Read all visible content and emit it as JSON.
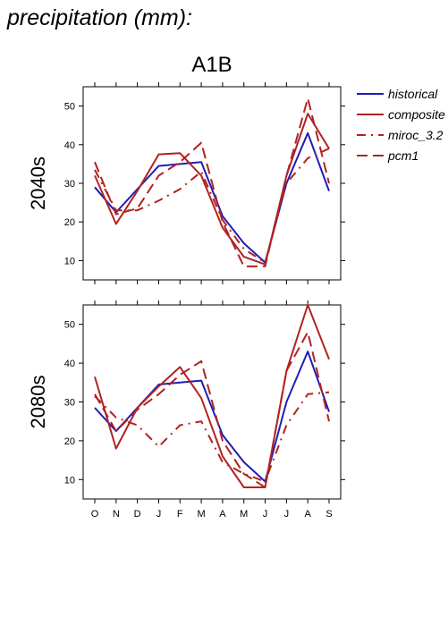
{
  "heading": "precipitation (mm):",
  "chart_data": {
    "type": "line",
    "title": "A1B",
    "categories": [
      "O",
      "N",
      "D",
      "J",
      "F",
      "M",
      "A",
      "M",
      "J",
      "J",
      "A",
      "S"
    ],
    "ylim": [
      5,
      55
    ],
    "yticks": [
      10,
      20,
      30,
      40,
      50
    ],
    "grid": false,
    "legend_position": "right",
    "legend": [
      {
        "name": "historical",
        "color": "#1f1fb4",
        "dash": "solid"
      },
      {
        "name": "composite",
        "color": "#b22222",
        "dash": "solid"
      },
      {
        "name": "miroc_3.2",
        "color": "#b22222",
        "dash": "dashdot"
      },
      {
        "name": "pcm1",
        "color": "#b22222",
        "dash": "longdash"
      }
    ],
    "panels": [
      {
        "label": "2040s",
        "series": [
          {
            "name": "historical",
            "values": [
              29,
              22.5,
              28.5,
              34.5,
              35,
              35.5,
              21.5,
              14.5,
              9.5,
              30,
              43,
              28
            ]
          },
          {
            "name": "composite",
            "values": [
              32,
              19.5,
              28,
              37.5,
              37.8,
              32,
              18.5,
              11,
              9,
              32,
              48,
              39
            ]
          },
          {
            "name": "miroc_3.2",
            "values": [
              33.5,
              23,
              23,
              25.5,
              28.5,
              33,
              20.5,
              13,
              9.5,
              30,
              36.5,
              39
            ]
          },
          {
            "name": "pcm1",
            "values": [
              35.5,
              22,
              23.5,
              32,
              35.5,
              40.5,
              20,
              8.5,
              8.5,
              32,
              52,
              30
            ]
          }
        ]
      },
      {
        "label": "2080s",
        "series": [
          {
            "name": "historical",
            "values": [
              28.5,
              22.5,
              28.5,
              34.5,
              35,
              35.5,
              21.5,
              14.5,
              9.5,
              30,
              43,
              27.5
            ]
          },
          {
            "name": "composite",
            "values": [
              36.5,
              18,
              28.5,
              34,
              39,
              31,
              16,
              8,
              8,
              38,
              55,
              41
            ]
          },
          {
            "name": "miroc_3.2",
            "values": [
              31.5,
              26,
              24,
              18.5,
              24,
              25,
              14.5,
              11.5,
              9.5,
              24,
              32,
              32.5
            ]
          },
          {
            "name": "pcm1",
            "values": [
              32,
              22.5,
              28,
              32,
              37,
              40.5,
              20,
              11.5,
              8,
              38,
              48,
              25
            ]
          }
        ]
      }
    ]
  }
}
